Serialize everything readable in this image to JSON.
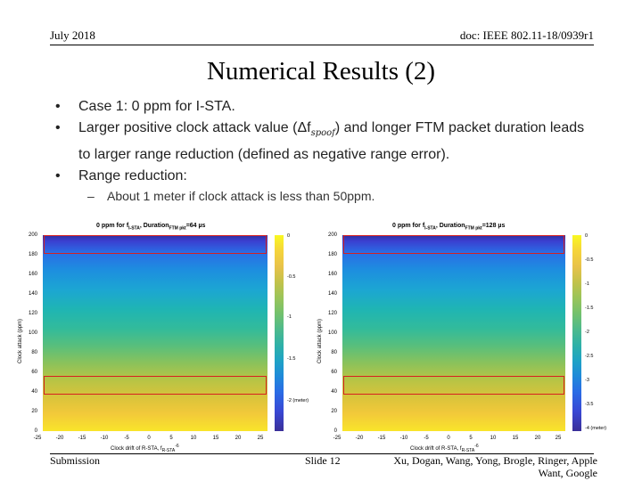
{
  "header": {
    "date": "July 2018",
    "doc": "doc: IEEE 802.11-18/0939r1"
  },
  "title": "Numerical Results (2)",
  "bullets": [
    "Case 1: 0 ppm for I-STA.",
    "Larger positive clock attack value (Δf",
    ") and longer FTM packet duration leads to larger range reduction (defined as negative range error).",
    "Range reduction:",
    "About 1 meter if clock attack is less than 50ppm."
  ],
  "bullet_symbol": "spoof",
  "plots": [
    {
      "title": "0 ppm for f",
      "title_sub": "I-STA",
      "title_mid": ", Duration",
      "title_sub2": "FTM pkt",
      "title_end": "=64 µs",
      "yticks": [
        "200",
        "180",
        "160",
        "140",
        "120",
        "100",
        "80",
        "60",
        "40",
        "20",
        "0"
      ],
      "xticks": [
        "-25",
        "-20",
        "-15",
        "-10",
        "-5",
        "0",
        "5",
        "10",
        "15",
        "20",
        "25"
      ],
      "cticks": [
        "0",
        "-0.5",
        "-1",
        "-1.5",
        "-2 (meter)"
      ],
      "ylabel": "Clock attack (ppm)",
      "xlabel": "Clock drift of R-STA, f",
      "xlabel_sub": "R-STA",
      "xlabel_exp": "-6"
    },
    {
      "title": "0 ppm for f",
      "title_sub": "I-STA",
      "title_mid": ", Duration",
      "title_sub2": "FTM pkt",
      "title_end": "=128 µs",
      "yticks": [
        "200",
        "180",
        "160",
        "140",
        "120",
        "100",
        "80",
        "60",
        "40",
        "20",
        "0"
      ],
      "xticks": [
        "-25",
        "-20",
        "-15",
        "-10",
        "-5",
        "0",
        "5",
        "10",
        "15",
        "20",
        "25"
      ],
      "cticks": [
        "0",
        "-0.5",
        "-1",
        "-1.5",
        "-2",
        "-2.5",
        "-3",
        "-3.5",
        "-4 (meter)"
      ],
      "ylabel": "Clock attack (ppm)",
      "xlabel": "Clock drift of R-STA, f",
      "xlabel_sub": "R-STA",
      "xlabel_exp": "-6"
    }
  ],
  "footer": {
    "left": "Submission",
    "center": "Slide 12",
    "right": "Xu, Dogan, Wang, Yong, Brogle, Ringer, Apple Want, Google"
  }
}
